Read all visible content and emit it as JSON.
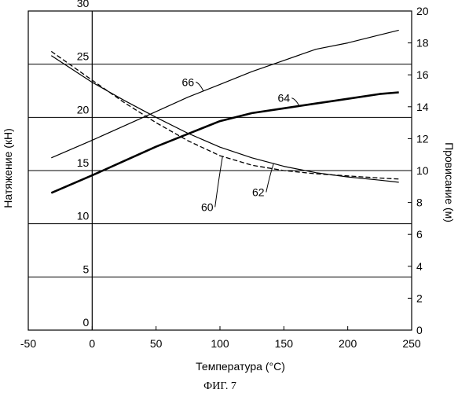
{
  "chart_data": {
    "type": "line",
    "xlabel": "Температура (°C)",
    "ylabel_left": "Натяжение (кН)",
    "ylabel_right": "Провисание (м)",
    "caption": "ФИГ. 7",
    "xlim": [
      -50,
      250
    ],
    "ylim_left": [
      0,
      30
    ],
    "ylim_right": [
      0,
      20
    ],
    "x_ticks": [
      "-50",
      "0",
      "50",
      "100",
      "150",
      "200",
      "250"
    ],
    "y_left_ticks": [
      "0",
      "5",
      "10",
      "15",
      "20",
      "25",
      "30"
    ],
    "y_right_ticks": [
      "0",
      "2",
      "4",
      "6",
      "8",
      "10",
      "12",
      "14",
      "16",
      "18",
      "20"
    ],
    "grid": "horizontal",
    "series": [
      {
        "name": "60",
        "axis": "left",
        "style": "dashed",
        "x": [
          -32,
          0,
          25,
          50,
          75,
          100,
          125,
          150,
          175,
          200,
          225,
          240
        ],
        "y": [
          26.2,
          23.5,
          21.4,
          19.5,
          17.8,
          16.4,
          15.5,
          15.0,
          14.7,
          14.5,
          14.3,
          14.2
        ]
      },
      {
        "name": "62",
        "axis": "left",
        "style": "thin",
        "x": [
          -32,
          0,
          25,
          50,
          75,
          100,
          125,
          150,
          175,
          200,
          225,
          240
        ],
        "y": [
          25.8,
          23.3,
          21.6,
          20.0,
          18.5,
          17.2,
          16.2,
          15.4,
          14.8,
          14.4,
          14.1,
          13.9
        ]
      },
      {
        "name": "64",
        "axis": "right",
        "style": "thick",
        "x": [
          -32,
          0,
          25,
          50,
          75,
          100,
          125,
          150,
          175,
          200,
          225,
          240
        ],
        "y": [
          8.6,
          9.7,
          10.6,
          11.5,
          12.3,
          13.1,
          13.6,
          13.9,
          14.2,
          14.5,
          14.8,
          14.9
        ]
      },
      {
        "name": "66",
        "axis": "right",
        "style": "thin",
        "x": [
          -32,
          0,
          25,
          50,
          75,
          100,
          125,
          150,
          175,
          200,
          225,
          240
        ],
        "y": [
          10.8,
          11.9,
          12.8,
          13.7,
          14.6,
          15.4,
          16.2,
          16.9,
          17.6,
          18.0,
          18.5,
          18.8
        ]
      }
    ],
    "callouts": [
      {
        "text": "66",
        "series": "66",
        "x": 75,
        "y": 15.3
      },
      {
        "text": "64",
        "series": "64",
        "x": 150,
        "y": 14.3
      },
      {
        "text": "62",
        "series": "62",
        "x": 130,
        "y": 12.6
      },
      {
        "text": "60",
        "series": "60",
        "x": 90,
        "y": 11.2
      }
    ]
  }
}
